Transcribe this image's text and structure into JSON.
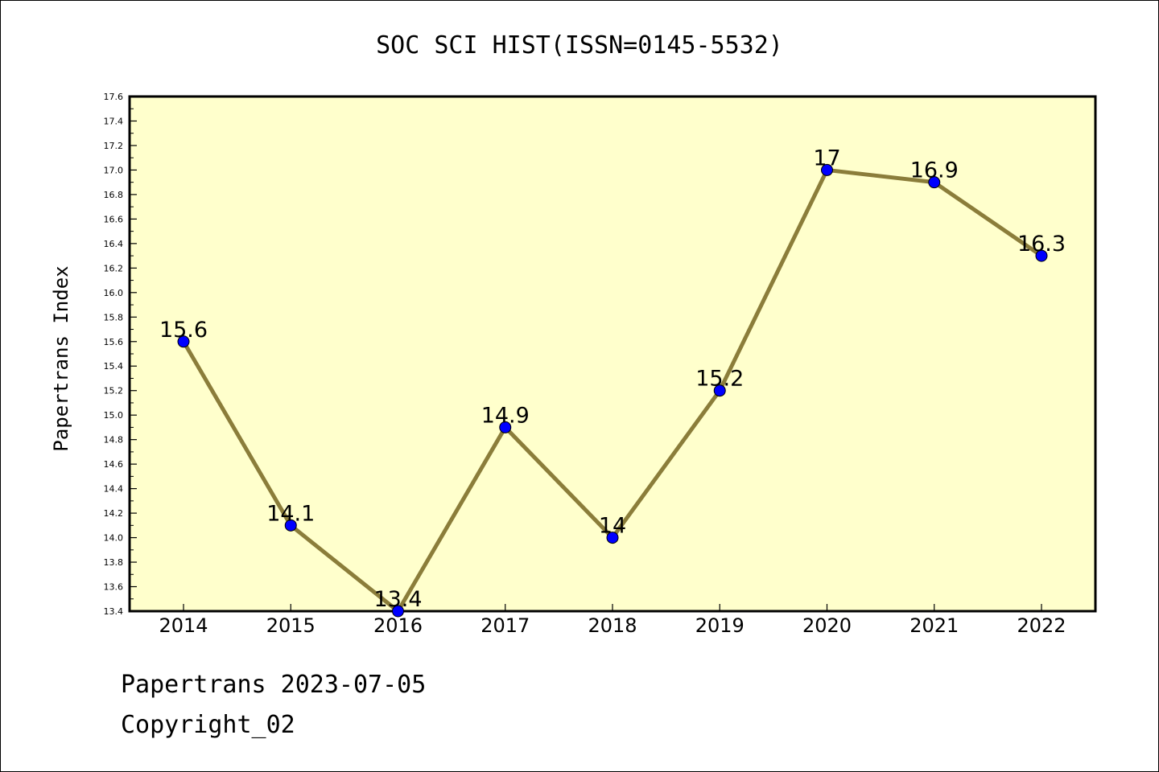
{
  "chart_data": {
    "type": "line",
    "title": "SOC SCI HIST(ISSN=0145-5532)",
    "xlabel": "",
    "ylabel": "Papertrans Index",
    "categories": [
      "2014",
      "2015",
      "2016",
      "2017",
      "2018",
      "2019",
      "2020",
      "2021",
      "2022"
    ],
    "values": [
      15.6,
      14.1,
      13.4,
      14.9,
      14.0,
      15.2,
      17.0,
      16.9,
      16.3
    ],
    "data_labels": [
      "15.6",
      "14.1",
      "13.4",
      "14.9",
      "14",
      "15.2",
      "17",
      "16.9",
      "16.3"
    ],
    "ylim": [
      13.4,
      17.6
    ],
    "yticks": [
      "13.4",
      "13.6",
      "13.8",
      "14.0",
      "14.2",
      "14.4",
      "14.6",
      "14.8",
      "15.0",
      "15.2",
      "15.4",
      "15.6",
      "15.8",
      "16.0",
      "16.2",
      "16.4",
      "16.6",
      "16.8",
      "17.0",
      "17.2",
      "17.4",
      "17.6"
    ],
    "grid": false,
    "legend": "none",
    "colors": {
      "plot_background": "#ffffcc",
      "line": "#8b7d3a",
      "marker": "#0000ff"
    }
  },
  "footer": {
    "line1": "Papertrans 2023-07-05",
    "line2": "Copyright_02"
  }
}
